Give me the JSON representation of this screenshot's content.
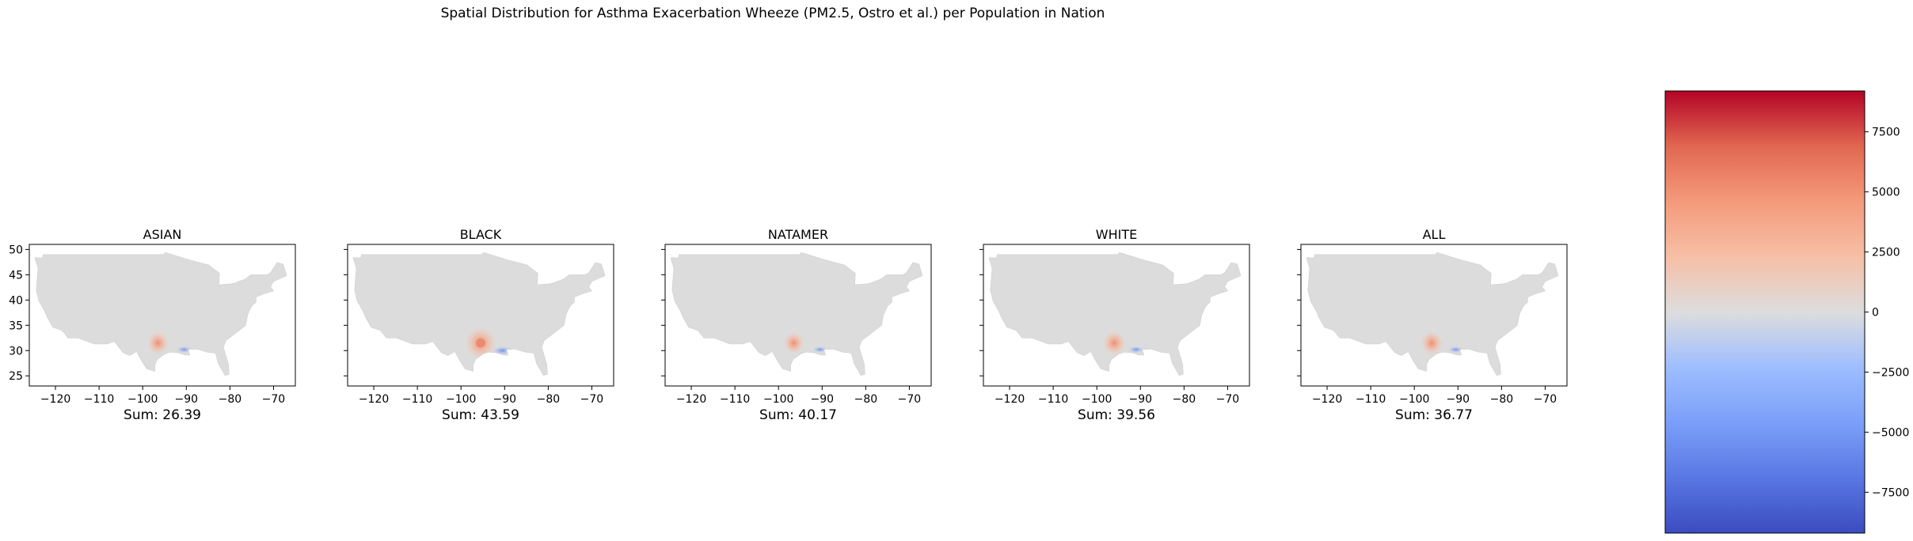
{
  "suptitle": "Spatial Distribution for Asthma Exacerbation  Wheeze (PM2.5, Ostro et al.) per Population in Nation",
  "chart_data": {
    "type": "heatmap",
    "panels": [
      {
        "title": "ASIAN",
        "sum_label": "Sum: 26.39",
        "hotspots": [
          {
            "lon": -96.5,
            "lat": 31.5,
            "value": 2200
          },
          {
            "lon": -90.5,
            "lat": 30.2,
            "value": -2800
          }
        ]
      },
      {
        "title": "BLACK",
        "sum_label": "Sum: 43.59",
        "hotspots": [
          {
            "lon": -95.5,
            "lat": 31.5,
            "value": 4600
          },
          {
            "lon": -90.5,
            "lat": 30.0,
            "value": -5200
          }
        ]
      },
      {
        "title": "NATAMER",
        "sum_label": "Sum: 40.17",
        "hotspots": [
          {
            "lon": -96.5,
            "lat": 31.5,
            "value": 2000
          },
          {
            "lon": -90.5,
            "lat": 30.2,
            "value": -2200
          }
        ]
      },
      {
        "title": "WHITE",
        "sum_label": "Sum: 39.56",
        "hotspots": [
          {
            "lon": -96.0,
            "lat": 31.5,
            "value": 2600
          },
          {
            "lon": -91.0,
            "lat": 30.2,
            "value": -3000
          }
        ]
      },
      {
        "title": "ALL",
        "sum_label": "Sum: 36.77",
        "hotspots": [
          {
            "lon": -96.0,
            "lat": 31.5,
            "value": 2400
          },
          {
            "lon": -90.5,
            "lat": 30.2,
            "value": -2600
          }
        ]
      }
    ],
    "x_ticks": [
      "−120",
      "−110",
      "−100",
      "−90",
      "−80",
      "−70"
    ],
    "x_tick_values": [
      -120,
      -110,
      -100,
      -90,
      -80,
      -70
    ],
    "y_ticks": [
      "50",
      "45",
      "40",
      "35",
      "30",
      "25"
    ],
    "y_tick_values": [
      50,
      45,
      40,
      35,
      30,
      25
    ],
    "xlim": [
      -126,
      -65
    ],
    "ylim": [
      23,
      51
    ],
    "colorbar": {
      "colormap": "coolwarm",
      "range": [
        -9200,
        9200
      ],
      "ticks": [
        "7500",
        "5000",
        "2500",
        "0",
        "−2500",
        "−5000",
        "−7500"
      ],
      "tick_values": [
        7500,
        5000,
        2500,
        0,
        -2500,
        -5000,
        -7500
      ]
    },
    "base_color": "#dcdcdc"
  }
}
